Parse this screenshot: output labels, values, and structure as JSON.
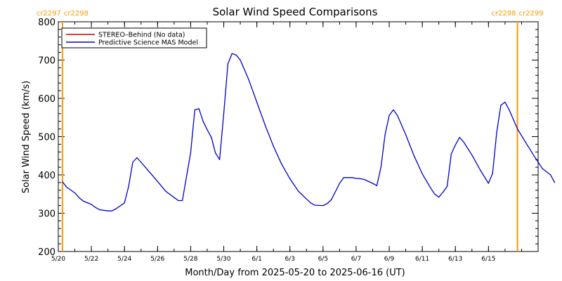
{
  "chart_data": {
    "type": "line",
    "title": "Solar Wind Speed Comparisons",
    "xlabel": "Month/Day from 2025-05-20 to 2025-06-16 (UT)",
    "ylabel": "Solar Wind Speed (km/s)",
    "xlim": [
      "2025-05-20",
      "2025-06-18"
    ],
    "ylim": [
      200,
      800
    ],
    "y_ticks": [
      200,
      300,
      400,
      500,
      600,
      700,
      800
    ],
    "x_ticks": [
      {
        "date": "2025-05-20",
        "label": "5/20"
      },
      {
        "date": "2025-05-22",
        "label": "5/22"
      },
      {
        "date": "2025-05-24",
        "label": "5/24"
      },
      {
        "date": "2025-05-26",
        "label": "5/26"
      },
      {
        "date": "2025-05-28",
        "label": "5/28"
      },
      {
        "date": "2025-05-30",
        "label": "5/30"
      },
      {
        "date": "2025-06-01",
        "label": "6/1"
      },
      {
        "date": "2025-06-03",
        "label": "6/3"
      },
      {
        "date": "2025-06-05",
        "label": "6/5"
      },
      {
        "date": "2025-06-07",
        "label": "6/7"
      },
      {
        "date": "2025-06-09",
        "label": "6/9"
      },
      {
        "date": "2025-06-11",
        "label": "6/11"
      },
      {
        "date": "2025-06-13",
        "label": "6/13"
      },
      {
        "date": "2025-06-15",
        "label": "6/15"
      }
    ],
    "grid": false,
    "legend_position": "top-left",
    "carrington_markers": [
      {
        "date": "2025-05-20T06:00",
        "label_left": "cr2297",
        "label_right": "cr2298",
        "color": "#ff9900"
      },
      {
        "date": "2025-06-16T18:00",
        "label_left": "cr2298",
        "label_right": "cr2299",
        "color": "#ff9900"
      }
    ],
    "series": [
      {
        "name": "STEREO–Behind (No data)",
        "color": "#cc0000",
        "points": []
      },
      {
        "name": "Predictive Science MAS Model",
        "color": "#0000cc",
        "points": [
          [
            "2025-05-20T06:00",
            382
          ],
          [
            "2025-05-20T12:00",
            368
          ],
          [
            "2025-05-21T00:00",
            353
          ],
          [
            "2025-05-21T06:00",
            341
          ],
          [
            "2025-05-21T12:00",
            332
          ],
          [
            "2025-05-22T00:00",
            323
          ],
          [
            "2025-05-22T06:00",
            315
          ],
          [
            "2025-05-22T12:00",
            309
          ],
          [
            "2025-05-23T00:00",
            306
          ],
          [
            "2025-05-23T06:00",
            306
          ],
          [
            "2025-05-23T12:00",
            312
          ],
          [
            "2025-05-24T00:00",
            327
          ],
          [
            "2025-05-24T06:00",
            370
          ],
          [
            "2025-05-24T12:00",
            433
          ],
          [
            "2025-05-24T18:00",
            445
          ],
          [
            "2025-05-25T00:00",
            433
          ],
          [
            "2025-05-25T12:00",
            408
          ],
          [
            "2025-05-26T00:00",
            383
          ],
          [
            "2025-05-26T12:00",
            357
          ],
          [
            "2025-05-27T00:00",
            341
          ],
          [
            "2025-05-27T06:00",
            333
          ],
          [
            "2025-05-27T12:00",
            333
          ],
          [
            "2025-05-28T00:00",
            458
          ],
          [
            "2025-05-28T06:00",
            570
          ],
          [
            "2025-05-28T12:00",
            573
          ],
          [
            "2025-05-28T18:00",
            540
          ],
          [
            "2025-05-29T00:00",
            518
          ],
          [
            "2025-05-29T06:00",
            498
          ],
          [
            "2025-05-29T12:00",
            457
          ],
          [
            "2025-05-29T18:00",
            440
          ],
          [
            "2025-05-30T00:00",
            560
          ],
          [
            "2025-05-30T06:00",
            690
          ],
          [
            "2025-05-30T12:00",
            717
          ],
          [
            "2025-05-30T18:00",
            713
          ],
          [
            "2025-05-31T00:00",
            700
          ],
          [
            "2025-05-31T12:00",
            650
          ],
          [
            "2025-06-01T00:00",
            590
          ],
          [
            "2025-06-01T12:00",
            530
          ],
          [
            "2025-06-02T00:00",
            475
          ],
          [
            "2025-06-02T12:00",
            428
          ],
          [
            "2025-06-03T00:00",
            390
          ],
          [
            "2025-06-03T12:00",
            358
          ],
          [
            "2025-06-04T00:00",
            337
          ],
          [
            "2025-06-04T06:00",
            327
          ],
          [
            "2025-06-04T12:00",
            321
          ],
          [
            "2025-06-05T00:00",
            320
          ],
          [
            "2025-06-05T06:00",
            325
          ],
          [
            "2025-06-05T12:00",
            335
          ],
          [
            "2025-06-06T00:00",
            378
          ],
          [
            "2025-06-06T06:00",
            393
          ],
          [
            "2025-06-06T18:00",
            393
          ],
          [
            "2025-06-07T00:00",
            391
          ],
          [
            "2025-06-07T06:00",
            390
          ],
          [
            "2025-06-07T12:00",
            388
          ],
          [
            "2025-06-08T00:00",
            378
          ],
          [
            "2025-06-08T06:00",
            372
          ],
          [
            "2025-06-08T12:00",
            420
          ],
          [
            "2025-06-08T18:00",
            505
          ],
          [
            "2025-06-09T00:00",
            555
          ],
          [
            "2025-06-09T06:00",
            570
          ],
          [
            "2025-06-09T12:00",
            555
          ],
          [
            "2025-06-10T00:00",
            505
          ],
          [
            "2025-06-10T12:00",
            450
          ],
          [
            "2025-06-11T00:00",
            403
          ],
          [
            "2025-06-11T12:00",
            366
          ],
          [
            "2025-06-11T18:00",
            350
          ],
          [
            "2025-06-12T00:00",
            342
          ],
          [
            "2025-06-12T06:00",
            355
          ],
          [
            "2025-06-12T12:00",
            370
          ],
          [
            "2025-06-12T18:00",
            455
          ],
          [
            "2025-06-13T00:00",
            478
          ],
          [
            "2025-06-13T06:00",
            498
          ],
          [
            "2025-06-13T12:00",
            486
          ],
          [
            "2025-06-14T00:00",
            452
          ],
          [
            "2025-06-14T12:00",
            413
          ],
          [
            "2025-06-15T00:00",
            378
          ],
          [
            "2025-06-15T06:00",
            404
          ],
          [
            "2025-06-15T12:00",
            512
          ],
          [
            "2025-06-15T18:00",
            582
          ],
          [
            "2025-06-16T00:00",
            590
          ],
          [
            "2025-06-16T06:00",
            570
          ],
          [
            "2025-06-16T18:00",
            520
          ],
          [
            "2025-06-17T06:00",
            485
          ],
          [
            "2025-06-17T18:00",
            450
          ],
          [
            "2025-06-18T06:00",
            417
          ],
          [
            "2025-06-18T18:00",
            400
          ],
          [
            "2025-06-19T00:00",
            380
          ]
        ]
      }
    ]
  }
}
